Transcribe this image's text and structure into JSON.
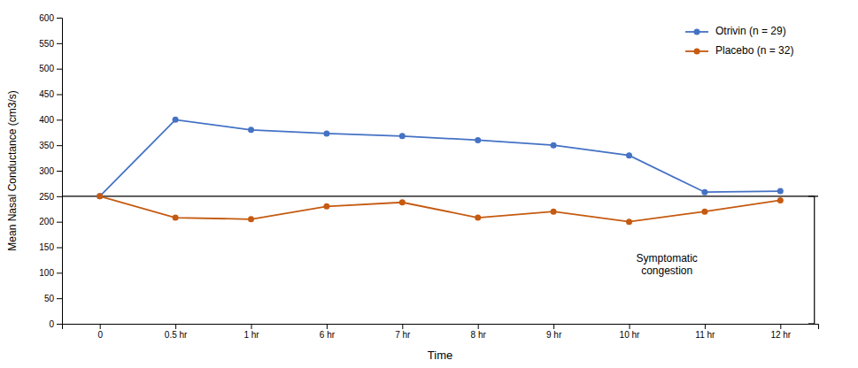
{
  "chart_data": {
    "type": "line",
    "categories": [
      "0",
      "0.5 hr",
      "1 hr",
      "6 hr",
      "7 hr",
      "8 hr",
      "9 hr",
      "10 hr",
      "11 hr",
      "12 hr"
    ],
    "series": [
      {
        "name": "Otrivin (n = 29)",
        "color": "#4472C4",
        "marker": "circle",
        "line_style": "solid",
        "values": [
          250,
          400,
          380,
          373,
          368,
          360,
          350,
          330,
          258,
          260
        ]
      },
      {
        "name": "Placebo (n = 32)",
        "color": "#C55A11",
        "marker": "circle",
        "line_style": "solid",
        "values": [
          250,
          208,
          205,
          230,
          238,
          208,
          220,
          200,
          220,
          242
        ]
      }
    ],
    "xlabel": "Time",
    "ylabel": "Mean Nasal Conductance (cm3/s)",
    "ylim": [
      0,
      600
    ],
    "yticks": [
      0,
      50,
      100,
      150,
      200,
      250,
      300,
      350,
      400,
      450,
      500,
      550,
      600
    ],
    "reference_line": 250,
    "bracket": [
      0,
      250
    ],
    "annotations": [
      {
        "text": "Symptomatic\ncongestion",
        "y": 115
      }
    ],
    "grid": false,
    "legend": "upper right"
  }
}
